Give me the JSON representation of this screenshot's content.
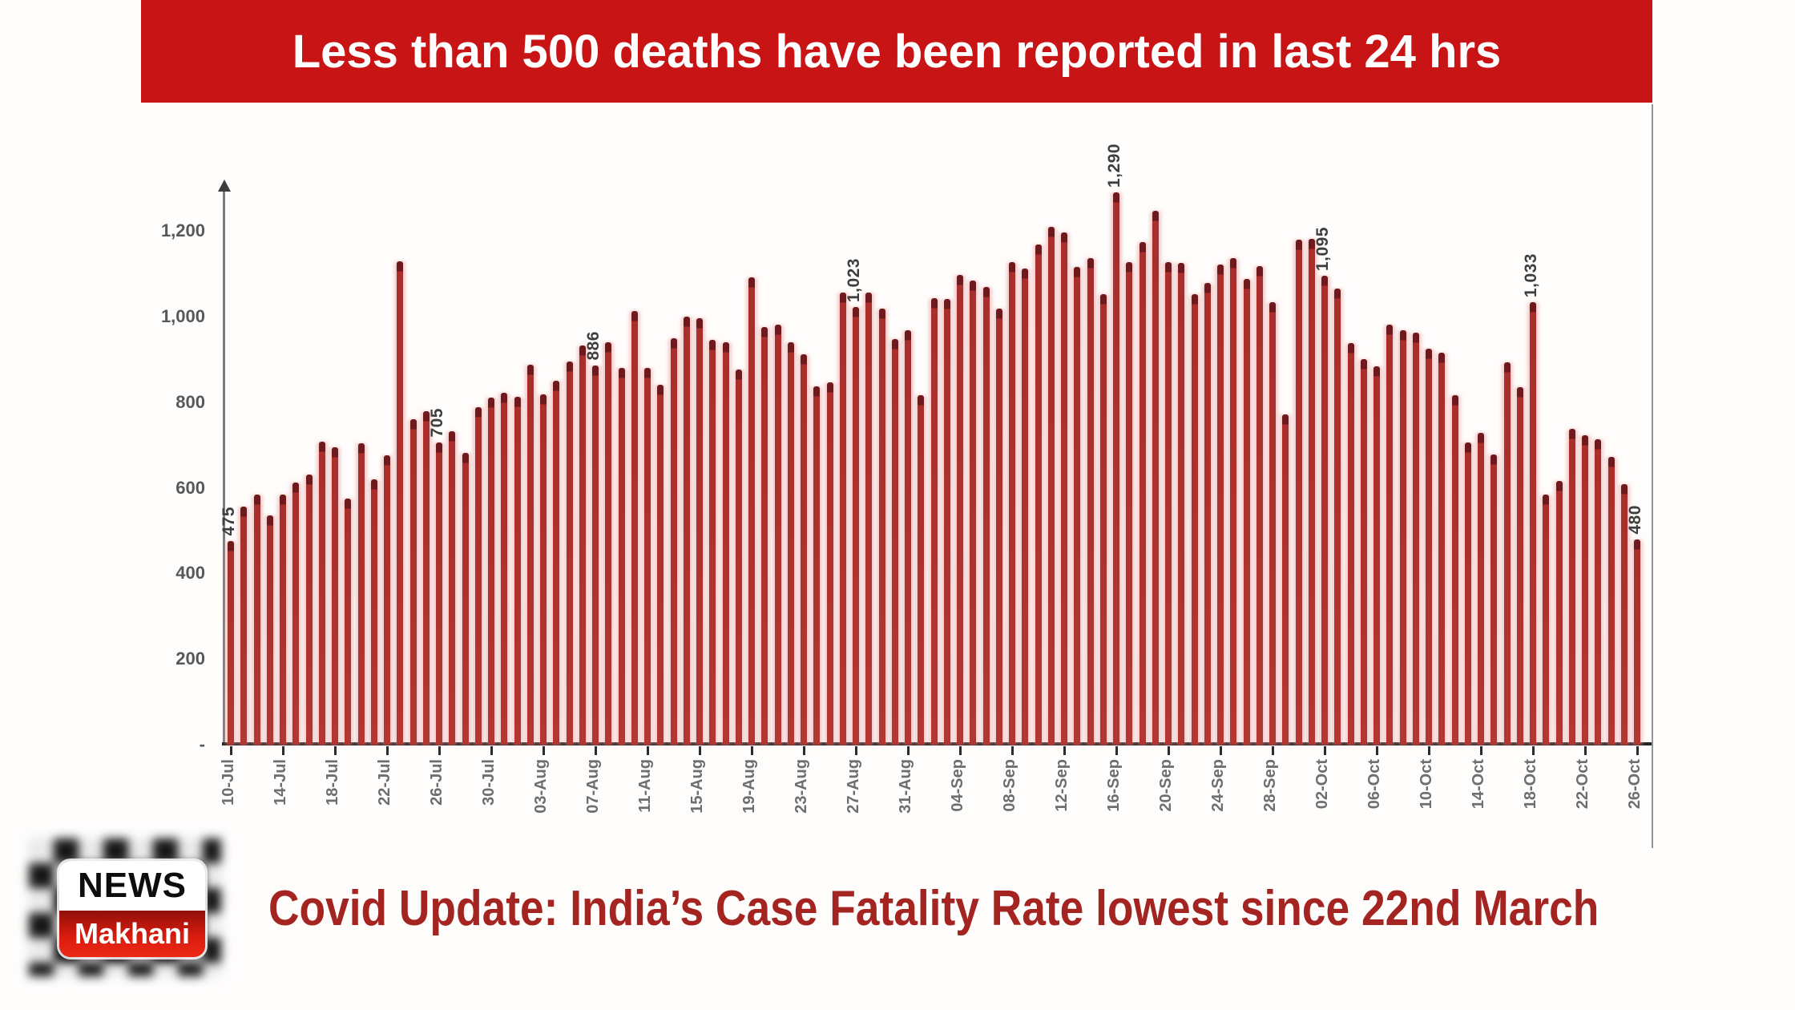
{
  "banner": {
    "text": "Less than 500 deaths have been reported in last 24 hrs",
    "bg_color": "#c81415",
    "fg_color": "#ffffff"
  },
  "chart_data": {
    "type": "bar",
    "title": "",
    "xlabel": "",
    "ylabel": "",
    "ylim": [
      0,
      1300
    ],
    "grid": false,
    "legend": "none",
    "bar_color": "#a92e2c",
    "bar_cap_color": "#6e191c",
    "axis_text_color": "#6e6e6e",
    "y_ticks": {
      "values": [
        0,
        200,
        400,
        600,
        800,
        1000,
        1200
      ],
      "labels": [
        "-",
        "200",
        "400",
        "600",
        "800",
        "1,000",
        "1,200"
      ]
    },
    "x_tick_every": 4,
    "x_tick_labels": [
      "10-Jul",
      "14-Jul",
      "18-Jul",
      "22-Jul",
      "26-Jul",
      "30-Jul",
      "03-Aug",
      "07-Aug",
      "11-Aug",
      "15-Aug",
      "19-Aug",
      "23-Aug",
      "27-Aug",
      "31-Aug",
      "04-Sep",
      "08-Sep",
      "12-Sep",
      "16-Sep",
      "20-Sep",
      "24-Sep",
      "28-Sep",
      "02-Oct",
      "06-Oct",
      "10-Oct",
      "14-Oct",
      "18-Oct",
      "22-Oct",
      "26-Oct"
    ],
    "categories": [
      "10-Jul",
      "11-Jul",
      "12-Jul",
      "13-Jul",
      "14-Jul",
      "15-Jul",
      "16-Jul",
      "17-Jul",
      "18-Jul",
      "19-Jul",
      "20-Jul",
      "21-Jul",
      "22-Jul",
      "23-Jul",
      "24-Jul",
      "25-Jul",
      "26-Jul",
      "27-Jul",
      "28-Jul",
      "29-Jul",
      "30-Jul",
      "31-Jul",
      "01-Aug",
      "02-Aug",
      "03-Aug",
      "04-Aug",
      "05-Aug",
      "06-Aug",
      "07-Aug",
      "08-Aug",
      "09-Aug",
      "10-Aug",
      "11-Aug",
      "12-Aug",
      "13-Aug",
      "14-Aug",
      "15-Aug",
      "16-Aug",
      "17-Aug",
      "18-Aug",
      "19-Aug",
      "20-Aug",
      "21-Aug",
      "22-Aug",
      "23-Aug",
      "24-Aug",
      "25-Aug",
      "26-Aug",
      "27-Aug",
      "28-Aug",
      "29-Aug",
      "30-Aug",
      "31-Aug",
      "01-Sep",
      "02-Sep",
      "03-Sep",
      "04-Sep",
      "05-Sep",
      "06-Sep",
      "07-Sep",
      "08-Sep",
      "09-Sep",
      "10-Sep",
      "11-Sep",
      "12-Sep",
      "13-Sep",
      "14-Sep",
      "15-Sep",
      "16-Sep",
      "17-Sep",
      "18-Sep",
      "19-Sep",
      "20-Sep",
      "21-Sep",
      "22-Sep",
      "23-Sep",
      "24-Sep",
      "25-Sep",
      "26-Sep",
      "27-Sep",
      "28-Sep",
      "29-Sep",
      "30-Sep",
      "01-Oct",
      "02-Oct",
      "03-Oct",
      "04-Oct",
      "05-Oct",
      "06-Oct",
      "07-Oct",
      "08-Oct",
      "09-Oct",
      "10-Oct",
      "11-Oct",
      "12-Oct",
      "13-Oct",
      "14-Oct",
      "15-Oct",
      "16-Oct",
      "17-Oct",
      "18-Oct",
      "19-Oct",
      "20-Oct",
      "21-Oct",
      "22-Oct",
      "23-Oct",
      "24-Oct",
      "25-Oct",
      "26-Oct"
    ],
    "values": [
      475,
      556,
      584,
      536,
      584,
      612,
      631,
      708,
      695,
      575,
      704,
      620,
      676,
      1129,
      760,
      779,
      705,
      732,
      682,
      788,
      810,
      822,
      813,
      888,
      818,
      850,
      895,
      933,
      886,
      940,
      880,
      1012,
      880,
      840,
      950,
      1000,
      996,
      945,
      940,
      876,
      1092,
      976,
      981,
      940,
      912,
      837,
      846,
      1056,
      1023,
      1056,
      1019,
      948,
      968,
      816,
      1043,
      1041,
      1097,
      1084,
      1069,
      1019,
      1127,
      1112,
      1169,
      1210,
      1197,
      1116,
      1137,
      1052,
      1290,
      1128,
      1174,
      1247,
      1128,
      1125,
      1052,
      1078,
      1122,
      1137,
      1088,
      1118,
      1034,
      772,
      1179,
      1181,
      1095,
      1066,
      938,
      901,
      884,
      981,
      968,
      963,
      925,
      916,
      816,
      706,
      728,
      678,
      893,
      835,
      1033,
      585,
      616,
      738,
      723,
      713,
      672,
      609,
      480
    ],
    "annotations": [
      {
        "index": 0,
        "label": "475"
      },
      {
        "index": 16,
        "label": "705"
      },
      {
        "index": 28,
        "label": "886"
      },
      {
        "index": 48,
        "label": "1,023"
      },
      {
        "index": 68,
        "label": "1,290"
      },
      {
        "index": 84,
        "label": "1,095"
      },
      {
        "index": 100,
        "label": "1,033"
      },
      {
        "index": 108,
        "label": "480"
      }
    ]
  },
  "footer": {
    "logo_top": "NEWS",
    "logo_bottom": "Makhani",
    "caption": "Covid Update: India’s Case Fatality Rate lowest since 22nd March",
    "caption_color": "#a32420"
  }
}
